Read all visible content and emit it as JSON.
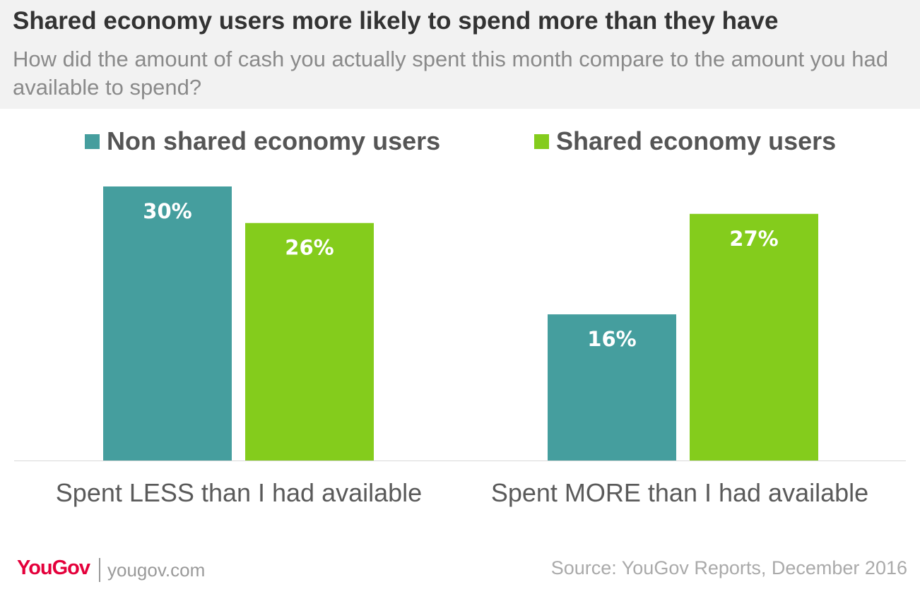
{
  "header": {
    "title": "Shared economy users more likely to spend more than they have",
    "subtitle": "How did the amount of cash you actually spent this month compare to the amount you had available to spend?"
  },
  "legend": [
    {
      "label": "Non shared economy users",
      "color": "#459e9e"
    },
    {
      "label": "Shared economy users",
      "color": "#84cc1c"
    }
  ],
  "chart_data": {
    "type": "bar",
    "title": "Shared economy users more likely to spend more than they have",
    "categories": [
      "Spent LESS than I had available",
      "Spent MORE than I had available"
    ],
    "series": [
      {
        "name": "Non shared economy users",
        "values": [
          30,
          16
        ],
        "labels": [
          "30%",
          "16%"
        ],
        "color": "#459e9e"
      },
      {
        "name": "Shared economy users",
        "values": [
          26,
          27
        ],
        "labels": [
          "26%",
          "27%"
        ],
        "color": "#84cc1c"
      }
    ],
    "ylim": [
      0,
      30
    ],
    "grid": false,
    "legend_position": "top"
  },
  "footer": {
    "logo": "YouGov",
    "site": "yougov.com",
    "source": "Source: YouGov Reports, December 2016"
  }
}
